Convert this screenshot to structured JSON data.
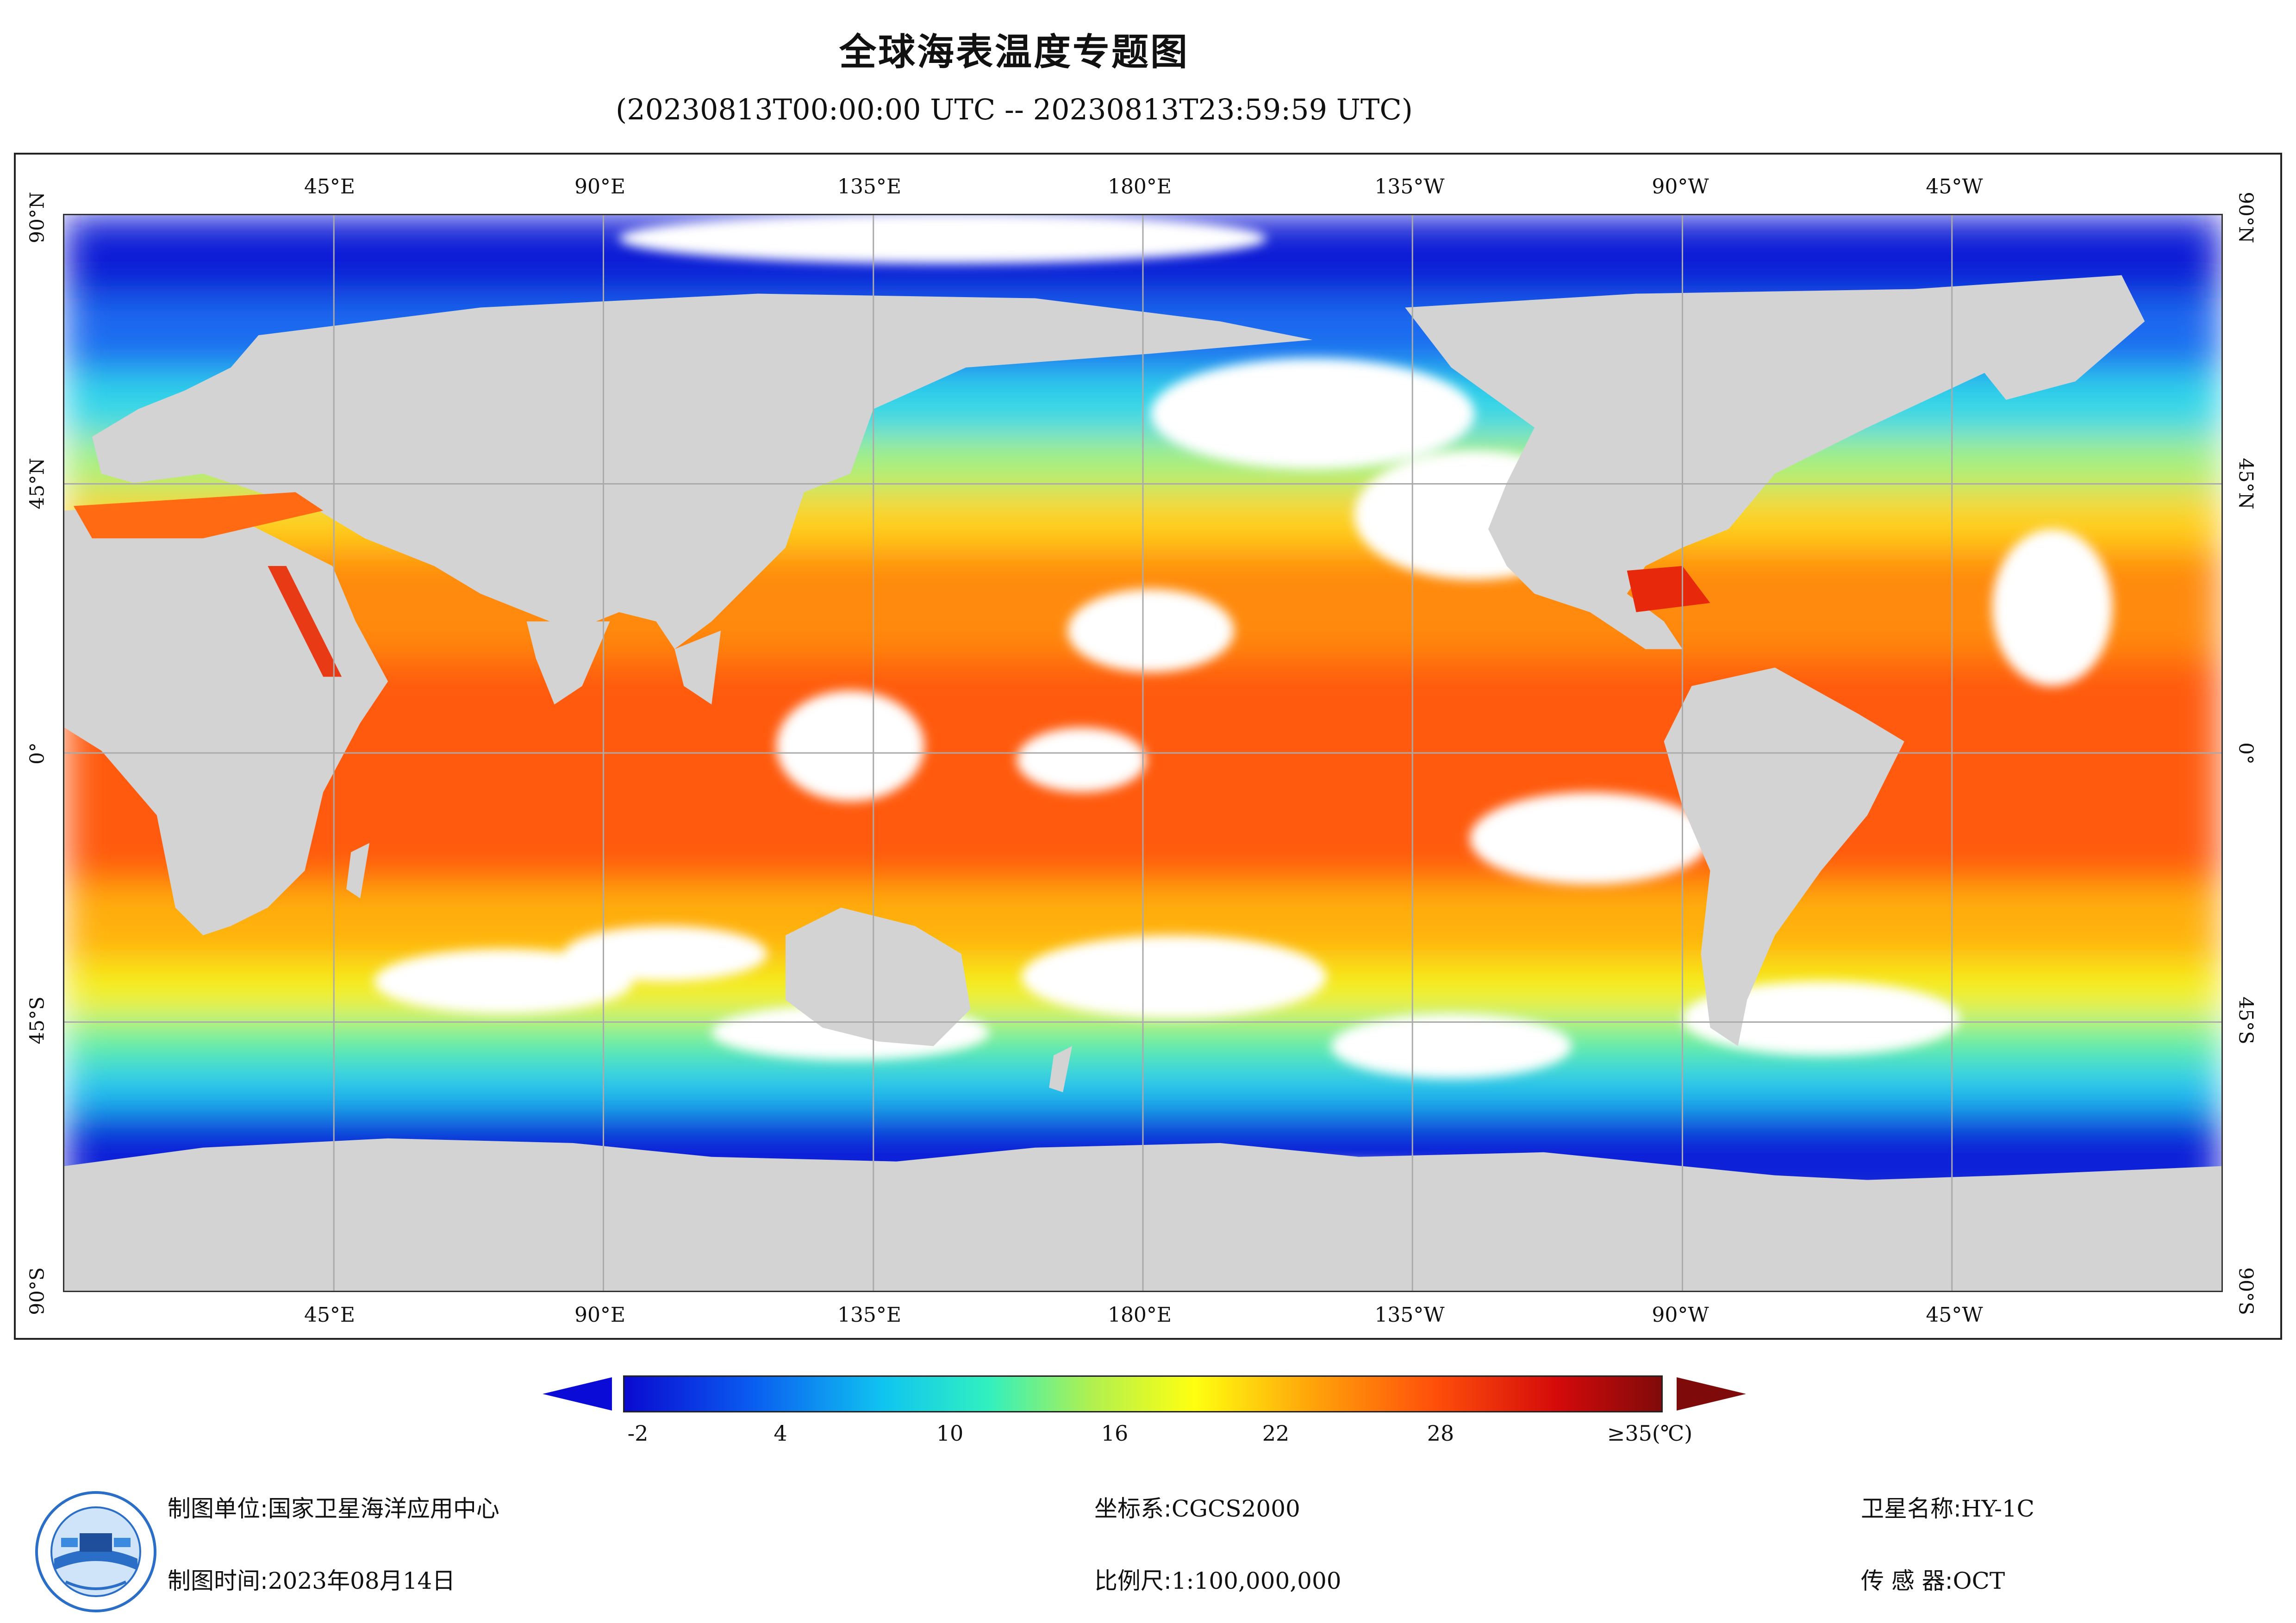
{
  "header": {
    "title": "全球海表温度专题图",
    "subtitle": "(20230813T00:00:00 UTC -- 20230813T23:59:59 UTC)"
  },
  "map": {
    "lon_labels": [
      "45°E",
      "90°E",
      "135°E",
      "180°E",
      "135°W",
      "90°W",
      "45°W"
    ],
    "lat_labels": [
      "90°N",
      "45°N",
      "0°",
      "45°S",
      "90°S"
    ],
    "colors": {
      "land": "#d3d3d3",
      "no_data": "#ffffff",
      "grid": "#aaaaaa"
    }
  },
  "colorbar": {
    "ticks": [
      "-2",
      "4",
      "10",
      "16",
      "22",
      "28",
      "≥35(℃)"
    ],
    "min": -2,
    "max": 35,
    "under_color": "#0b0bd8",
    "over_color": "#7e0a0a"
  },
  "footer": {
    "unit_label": "制图单位:",
    "unit_value": "国家卫星海洋应用中心",
    "time_label": "制图时间:",
    "time_value": "2023年08月14日",
    "crs_label": "坐标系:",
    "crs_value": "CGCS2000",
    "scale_label": "比例尺:",
    "scale_value": "1:100,000,000",
    "sat_label": "卫星名称:",
    "sat_value": "HY-1C",
    "sensor_label": "传 感 器:",
    "sensor_value": "OCT"
  }
}
